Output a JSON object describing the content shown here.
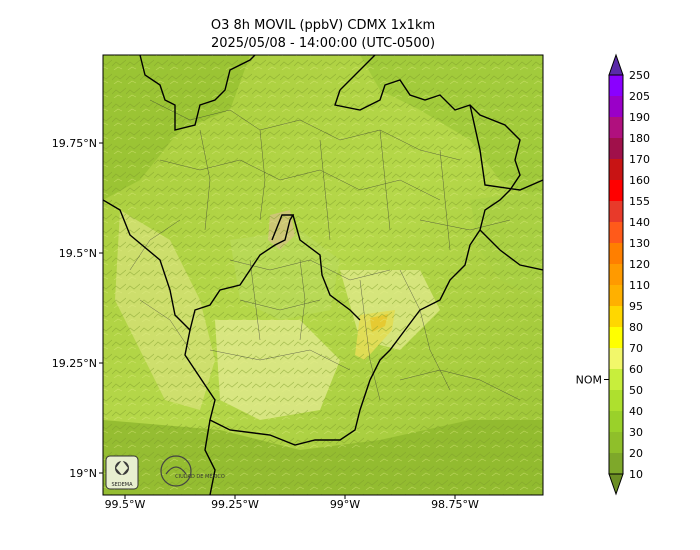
{
  "map": {
    "title_line1": "O3 8h MOVIL (ppbV) CDMX 1x1km",
    "title_line2": "2025/05/08 - 14:00:00 (UTC-0500)",
    "lat_ticks": [
      {
        "label": "19.75°N",
        "value": 19.75
      },
      {
        "label": "19.5°N",
        "value": 19.5
      },
      {
        "label": "19.25°N",
        "value": 19.25
      },
      {
        "label": "19°N",
        "value": 19.0
      }
    ],
    "lon_ticks": [
      {
        "label": "99.5°W",
        "value": -99.5
      },
      {
        "label": "99.25°W",
        "value": -99.25
      },
      {
        "label": "99°W",
        "value": -99.0
      },
      {
        "label": "98.75°W",
        "value": -98.75
      }
    ],
    "extent": {
      "lon_min": -99.55,
      "lon_max": -98.55,
      "lat_min": 18.95,
      "lat_max": 19.95
    },
    "logos": [
      "SEDEMA",
      "CIUDAD DE MÉXICO"
    ]
  },
  "colorbar": {
    "levels": [
      10,
      20,
      30,
      40,
      50,
      60,
      70,
      80,
      95,
      110,
      120,
      130,
      140,
      155,
      160,
      170,
      180,
      190,
      205,
      250
    ],
    "colors": [
      "#6b8e23",
      "#7ea82a",
      "#8fbf2a",
      "#9ad12a",
      "#aee02e",
      "#c8ee3c",
      "#f2f76a",
      "#ffff00",
      "#ffd700",
      "#ffb000",
      "#ff9a00",
      "#ff7f00",
      "#ff5a1a",
      "#e83a2a",
      "#ff0000",
      "#c81414",
      "#a0104a",
      "#b0107e",
      "#9a00c8",
      "#8a00ff",
      "#5a2aa8"
    ],
    "nom_label": "NOM",
    "nom_value": 60
  }
}
